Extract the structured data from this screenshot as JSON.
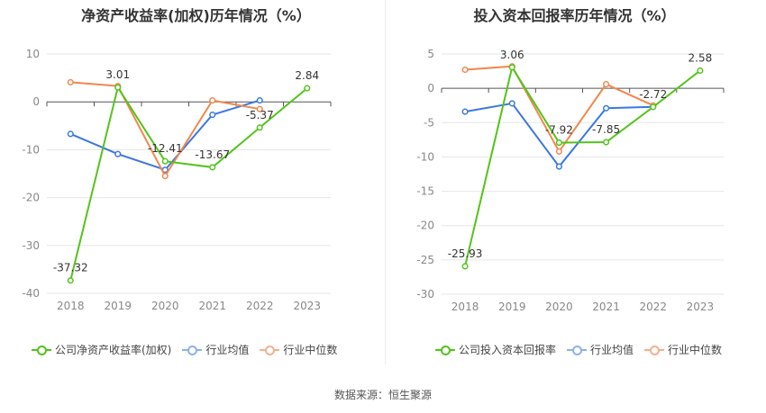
{
  "source_label": "数据来源：恒生聚源",
  "chart_data": [
    {
      "type": "line",
      "title": "净资产收益率(加权)历年情况（%）",
      "categories": [
        "2018",
        "2019",
        "2020",
        "2021",
        "2022",
        "2023"
      ],
      "ylim": [
        -40,
        10
      ],
      "yticks": [
        10,
        0,
        -10,
        -20,
        -30,
        -40
      ],
      "grid": true,
      "legend_position": "bottom",
      "series": [
        {
          "name": "公司净资产收益率(加权)",
          "color": "#52c41a",
          "values": [
            -37.32,
            3.01,
            -12.41,
            -13.67,
            -5.37,
            2.84
          ],
          "labels": [
            "-37.32",
            "3.01",
            "-12.41",
            "-13.67",
            "-5.37",
            "2.84"
          ]
        },
        {
          "name": "行业均值",
          "color": "#3a78e0",
          "values": [
            -6.7,
            -10.9,
            -14.2,
            -2.7,
            0.3,
            null
          ]
        },
        {
          "name": "行业中位数",
          "color": "#f0884e",
          "values": [
            4.1,
            3.3,
            -15.5,
            0.3,
            -1.5,
            null
          ]
        }
      ]
    },
    {
      "type": "line",
      "title": "投入资本回报率历年情况（%）",
      "categories": [
        "2018",
        "2019",
        "2020",
        "2021",
        "2022",
        "2023"
      ],
      "ylim": [
        -30,
        5
      ],
      "yticks": [
        5,
        0,
        -5,
        -10,
        -15,
        -20,
        -25,
        -30
      ],
      "grid": true,
      "legend_position": "bottom",
      "series": [
        {
          "name": "公司投入资本回报率",
          "color": "#52c41a",
          "values": [
            -25.93,
            3.06,
            -7.92,
            -7.85,
            -2.72,
            2.58
          ],
          "labels": [
            "-25.93",
            "3.06",
            "-7.92",
            "-7.85",
            "-2.72",
            "2.58"
          ]
        },
        {
          "name": "行业均值",
          "color": "#3a78e0",
          "values": [
            -3.4,
            -2.2,
            -11.4,
            -2.9,
            -2.7,
            null
          ]
        },
        {
          "name": "行业中位数",
          "color": "#f0884e",
          "values": [
            2.7,
            3.2,
            -9.2,
            0.6,
            -2.5,
            null
          ]
        }
      ]
    }
  ]
}
